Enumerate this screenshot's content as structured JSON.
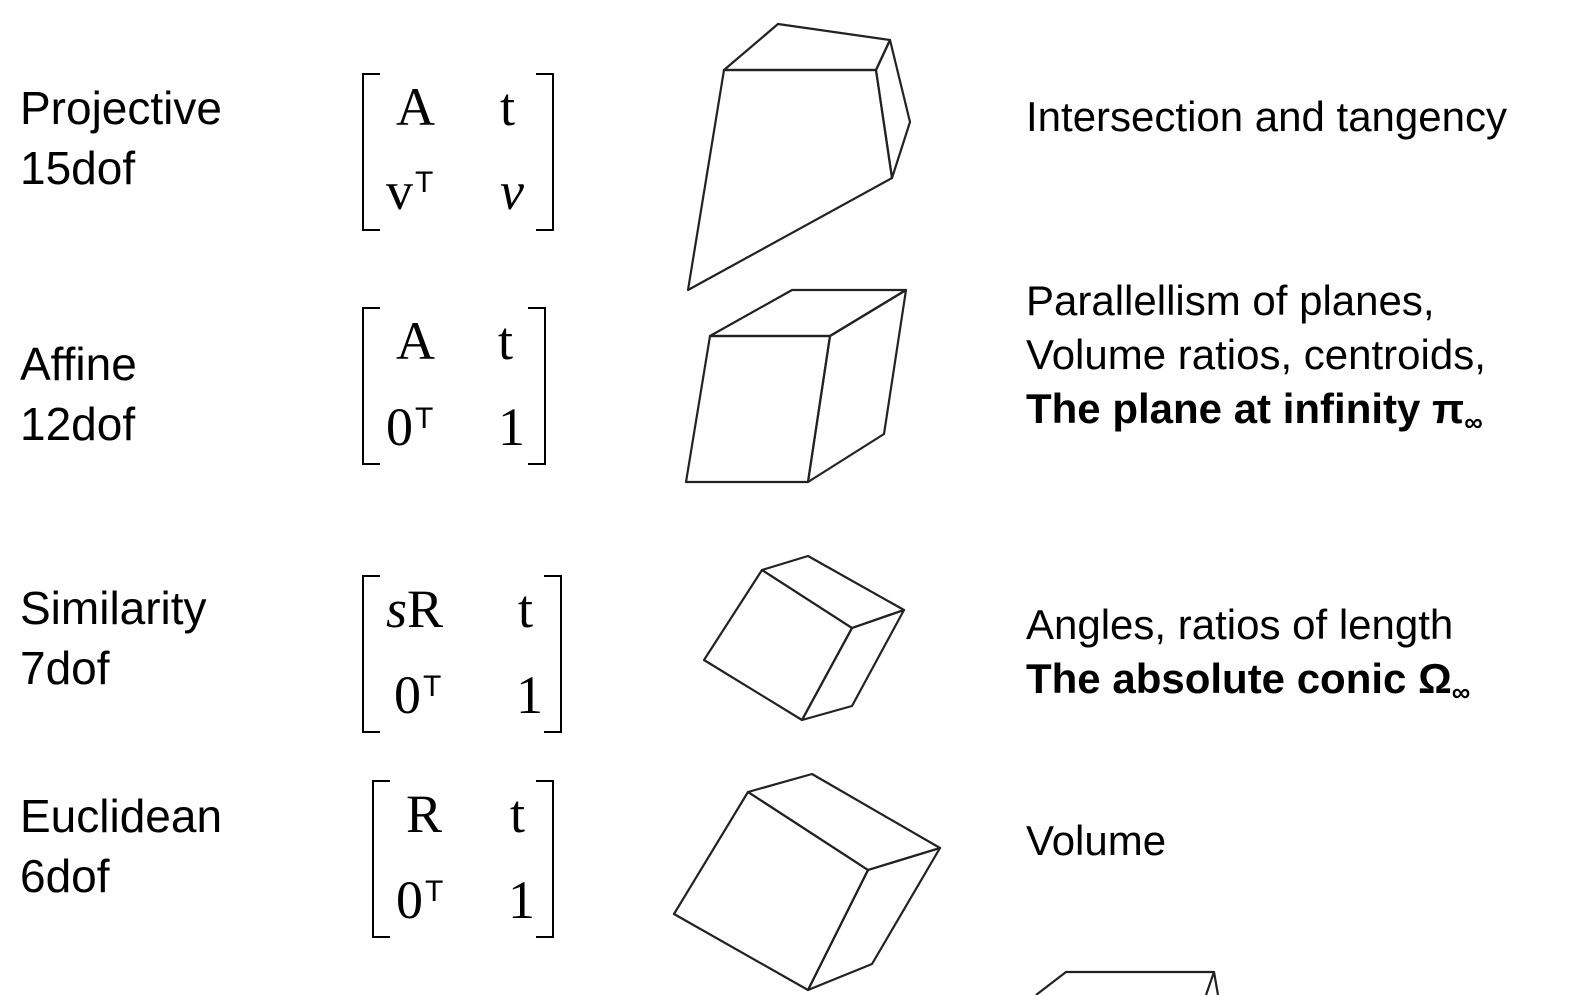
{
  "rows": [
    {
      "name": "Projective",
      "dof": "15dof",
      "matrix": {
        "top_left": "A",
        "top_right": "t",
        "bottom_left": "v",
        "bottom_left_sup": "T",
        "bottom_right": "v"
      },
      "properties": [
        "Intersection and tangency"
      ]
    },
    {
      "name": "Affine",
      "dof": "12dof",
      "matrix": {
        "top_left": "A",
        "top_right": "t",
        "bottom_left": "0",
        "bottom_left_sup": "T",
        "bottom_right": "1"
      },
      "properties": [
        "Parallellism of planes,",
        "Volume ratios, centroids,"
      ],
      "bold_property": "The plane at infinity π",
      "bold_property_sub": "∞"
    },
    {
      "name": "Similarity",
      "dof": "7dof",
      "matrix": {
        "top_left_italic": "s",
        "top_left": "R",
        "top_right": "t",
        "bottom_left": "0",
        "bottom_left_sup": "T",
        "bottom_right": "1"
      },
      "properties": [
        "Angles, ratios of length"
      ],
      "bold_property": "The absolute conic Ω",
      "bold_property_sub": "∞"
    },
    {
      "name": "Euclidean",
      "dof": "6dof",
      "matrix": {
        "top_left": "R",
        "top_right": "t",
        "bottom_left": "0",
        "bottom_left_sup": "T",
        "bottom_right": "1"
      },
      "properties": [
        "Volume"
      ]
    }
  ]
}
